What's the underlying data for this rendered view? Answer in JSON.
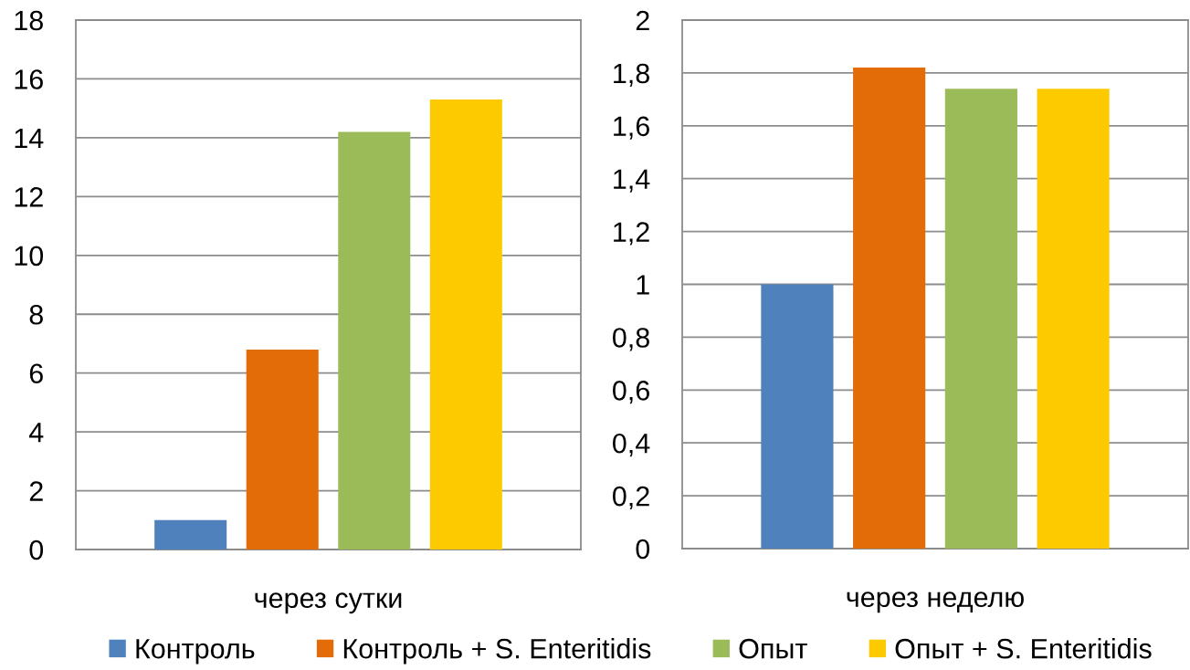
{
  "chart_data": [
    {
      "type": "bar",
      "xlabel": "через сутки",
      "categories": [
        null,
        null,
        null,
        null
      ],
      "series": [
        {
          "name": "Контроль",
          "color": "#4f81bd",
          "values": [
            1.0,
            null,
            null,
            null
          ]
        },
        {
          "name": "Контроль + S. Enteritidis",
          "color": "#e36c09",
          "values": [
            null,
            6.8,
            null,
            null
          ]
        },
        {
          "name": "Опыт",
          "color": "#9bbb59",
          "values": [
            null,
            null,
            14.2,
            null
          ]
        },
        {
          "name": "Опыт + S. Enteritidis",
          "color": "#fdca00",
          "values": [
            null,
            null,
            null,
            15.3
          ]
        }
      ],
      "ylim": [
        0,
        18
      ],
      "yticks": [
        0,
        2,
        4,
        6,
        8,
        10,
        12,
        14,
        16,
        18
      ],
      "grid": "y",
      "legend": "bottom"
    },
    {
      "type": "bar",
      "xlabel": "через неделю",
      "categories": [
        null,
        null,
        null,
        null
      ],
      "series": [
        {
          "color": "#4f81bd",
          "values": [
            1.0,
            null,
            null,
            null
          ]
        },
        {
          "color": "#e36c09",
          "values": [
            null,
            1.82,
            null,
            null
          ]
        },
        {
          "color": "#9bbb59",
          "values": [
            null,
            null,
            1.74,
            null
          ]
        },
        {
          "color": "#fdca00",
          "values": [
            null,
            null,
            null,
            1.74
          ]
        }
      ],
      "ylim": [
        0,
        2
      ],
      "yticks": [
        0,
        {
          "value": 0.2,
          "label": "0,2"
        },
        {
          "value": 0.4,
          "label": "0,4"
        },
        {
          "value": 0.6,
          "label": "0,6"
        },
        {
          "value": 0.8,
          "label": "0,8"
        },
        1,
        {
          "value": 1.2,
          "label": "1,2"
        },
        {
          "value": 1.4,
          "label": "1,4"
        },
        {
          "value": 1.6,
          "label": "1,6"
        },
        {
          "value": 1.8,
          "label": "1,8"
        },
        2
      ],
      "grid": "y"
    }
  ]
}
